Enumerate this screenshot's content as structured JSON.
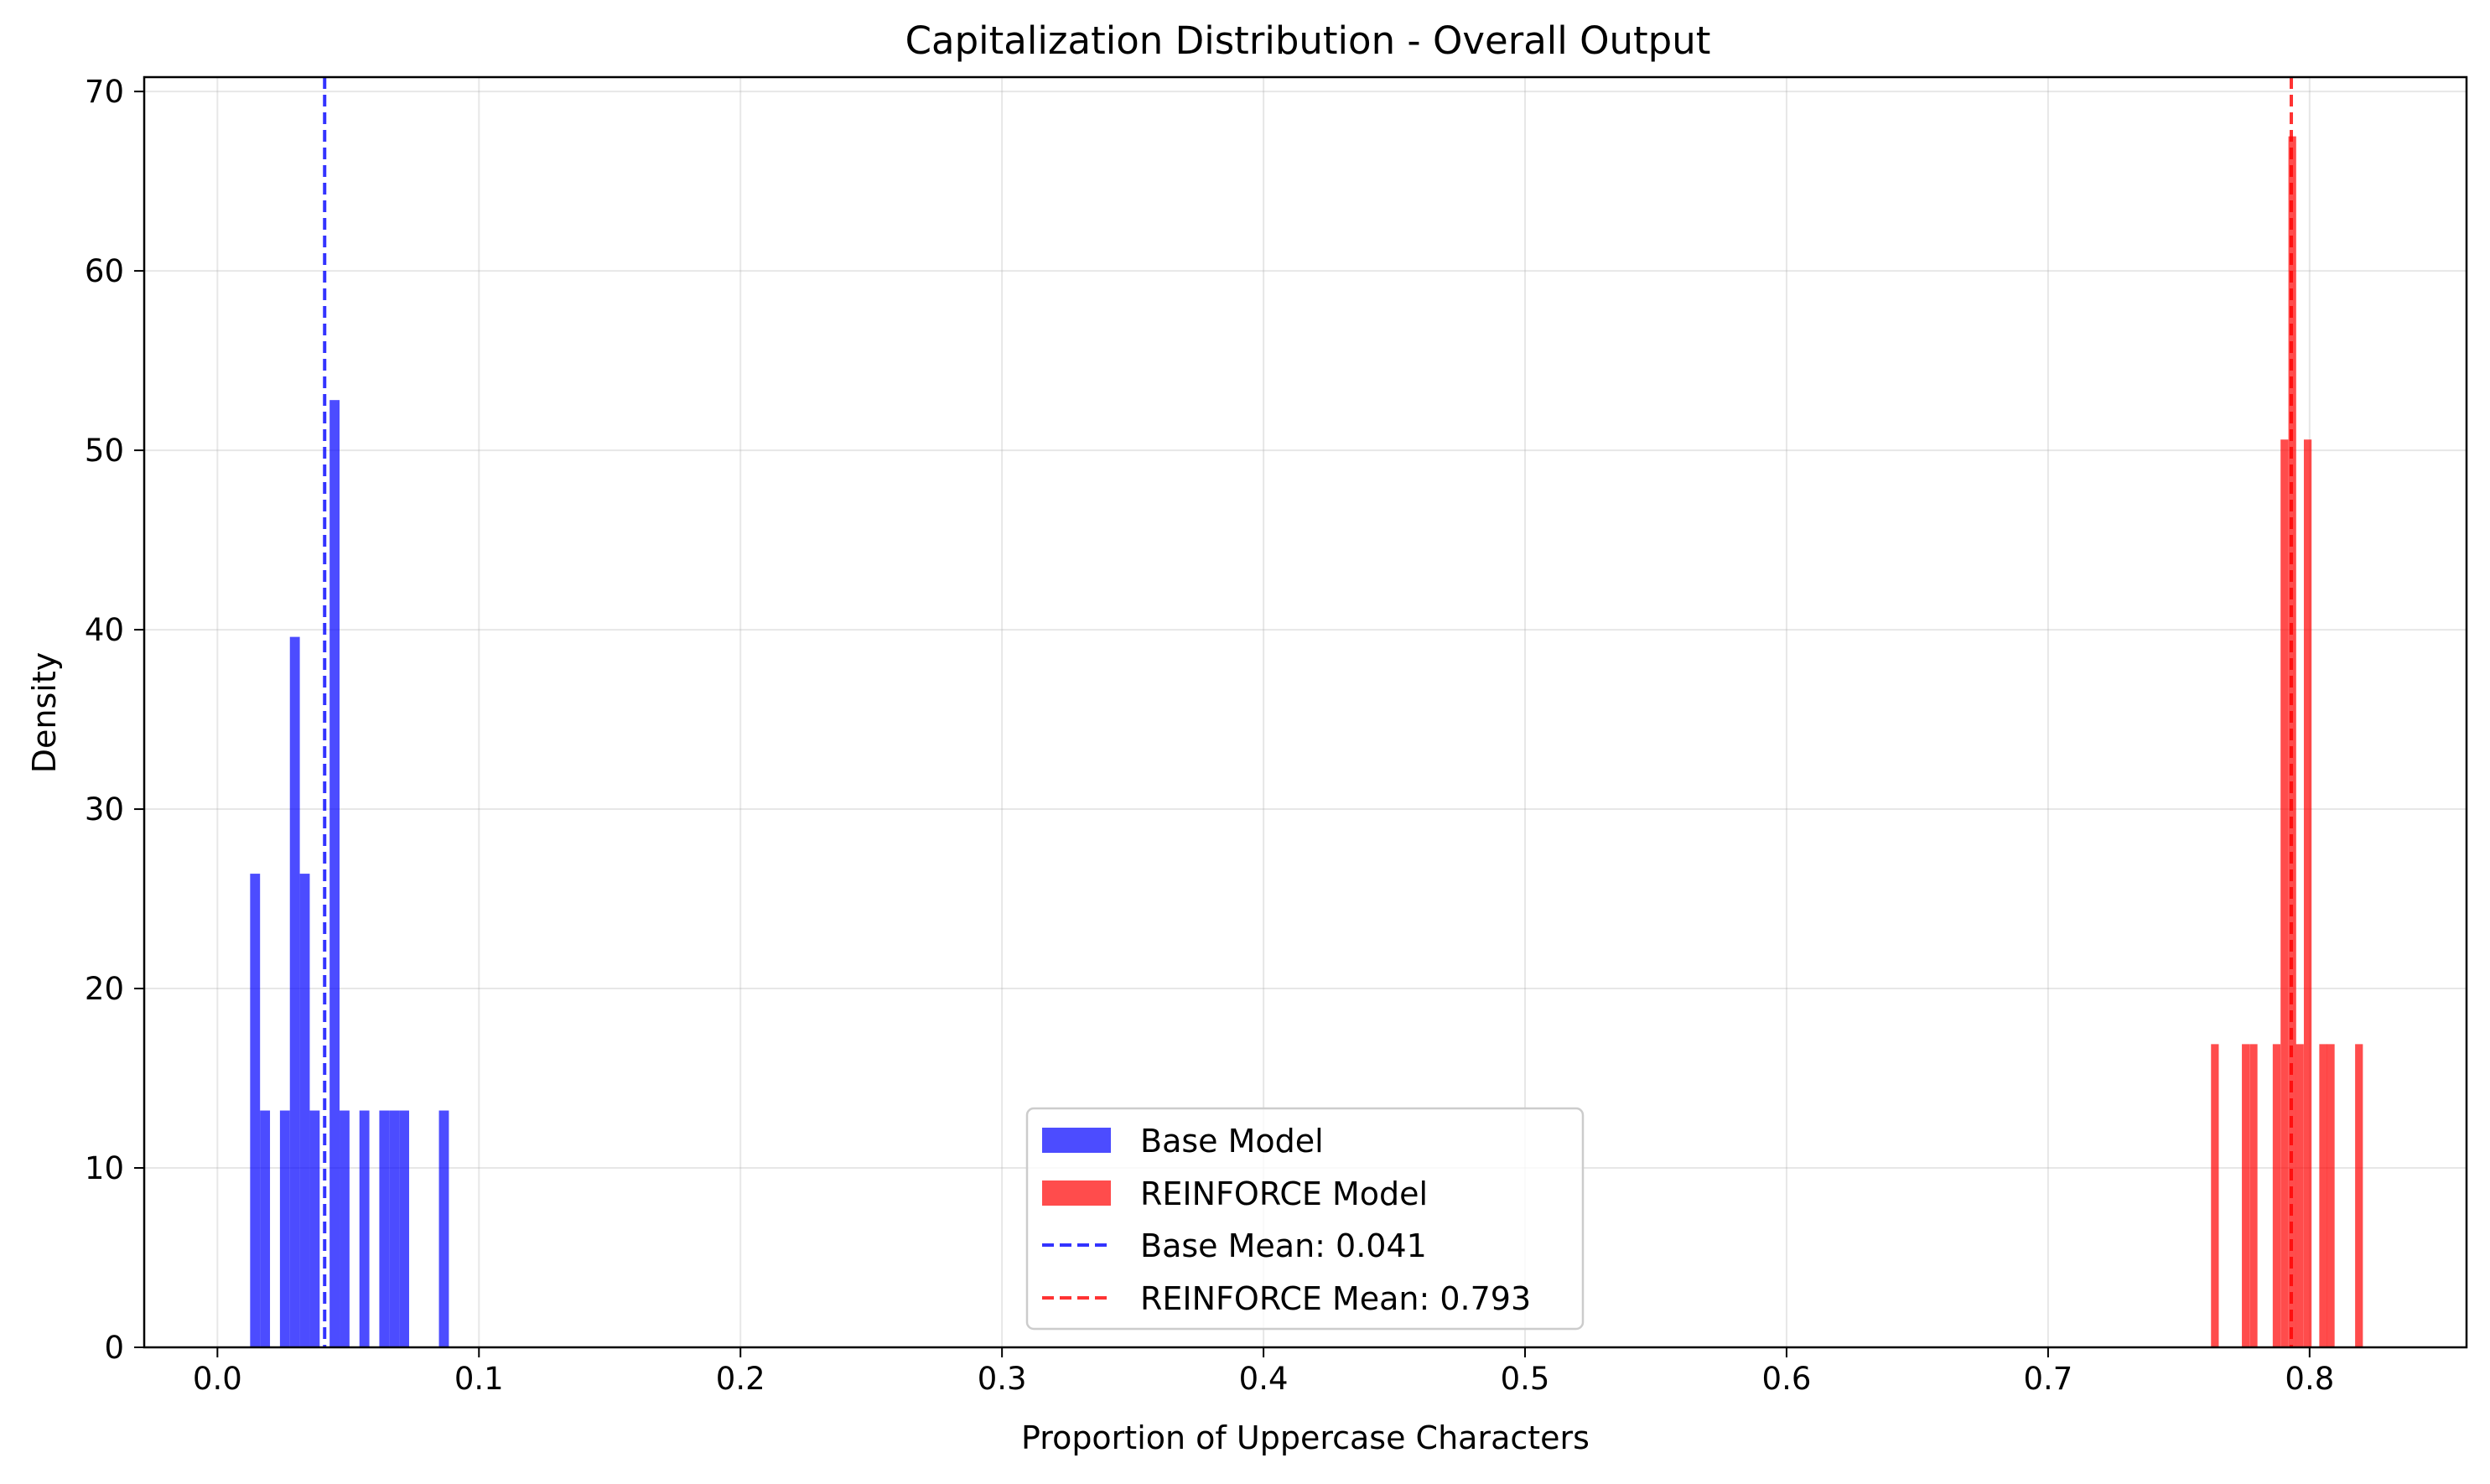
{
  "chart_data": {
    "type": "histogram",
    "title": "Capitalization Distribution - Overall Output",
    "xlabel": "Proportion of Uppercase Characters",
    "ylabel": "Density",
    "xlim": [
      -0.028,
      0.86
    ],
    "ylim": [
      0,
      70.8
    ],
    "xticks": [
      0.0,
      0.1,
      0.2,
      0.3,
      0.4,
      0.5,
      0.6,
      0.7,
      0.8
    ],
    "xtick_labels": [
      "0.0",
      "0.1",
      "0.2",
      "0.3",
      "0.4",
      "0.5",
      "0.6",
      "0.7",
      "0.8"
    ],
    "yticks": [
      0,
      10,
      20,
      30,
      40,
      50,
      60,
      70
    ],
    "ytick_labels": [
      "0",
      "10",
      "20",
      "30",
      "40",
      "50",
      "60",
      "70"
    ],
    "grid": true,
    "legend_position": "lower-center",
    "series": [
      {
        "name": "Base Model",
        "color": "#0000ff",
        "opacity": 0.7,
        "bin_width": 0.0038,
        "bins": [
          {
            "x0": 0.0125,
            "y": 26.4
          },
          {
            "x0": 0.0163,
            "y": 13.2
          },
          {
            "x0": 0.0239,
            "y": 13.2
          },
          {
            "x0": 0.0277,
            "y": 39.6
          },
          {
            "x0": 0.0315,
            "y": 26.4
          },
          {
            "x0": 0.0353,
            "y": 13.2
          },
          {
            "x0": 0.0429,
            "y": 52.8
          },
          {
            "x0": 0.0467,
            "y": 13.2
          },
          {
            "x0": 0.0543,
            "y": 13.2
          },
          {
            "x0": 0.0619,
            "y": 13.2
          },
          {
            "x0": 0.0657,
            "y": 13.2
          },
          {
            "x0": 0.0695,
            "y": 13.2
          },
          {
            "x0": 0.0847,
            "y": 13.2
          }
        ]
      },
      {
        "name": "REINFORCE Model",
        "color": "#ff0000",
        "opacity": 0.7,
        "bin_width": 0.00296,
        "bins": [
          {
            "x0": 0.7623,
            "y": 16.9
          },
          {
            "x0": 0.7741,
            "y": 16.9
          },
          {
            "x0": 0.7771,
            "y": 16.9
          },
          {
            "x0": 0.7859,
            "y": 16.9
          },
          {
            "x0": 0.7889,
            "y": 50.6
          },
          {
            "x0": 0.7919,
            "y": 67.5
          },
          {
            "x0": 0.7948,
            "y": 16.9
          },
          {
            "x0": 0.7978,
            "y": 50.6
          },
          {
            "x0": 0.8037,
            "y": 16.9
          },
          {
            "x0": 0.8066,
            "y": 16.9
          },
          {
            "x0": 0.8174,
            "y": 16.9
          }
        ]
      }
    ],
    "mean_lines": [
      {
        "name": "Base Mean: 0.041",
        "value": 0.041,
        "color": "#0000ff",
        "style": "dashed"
      },
      {
        "name": "REINFORCE Mean: 0.793",
        "value": 0.793,
        "color": "#ff0000",
        "style": "dashed"
      }
    ]
  }
}
